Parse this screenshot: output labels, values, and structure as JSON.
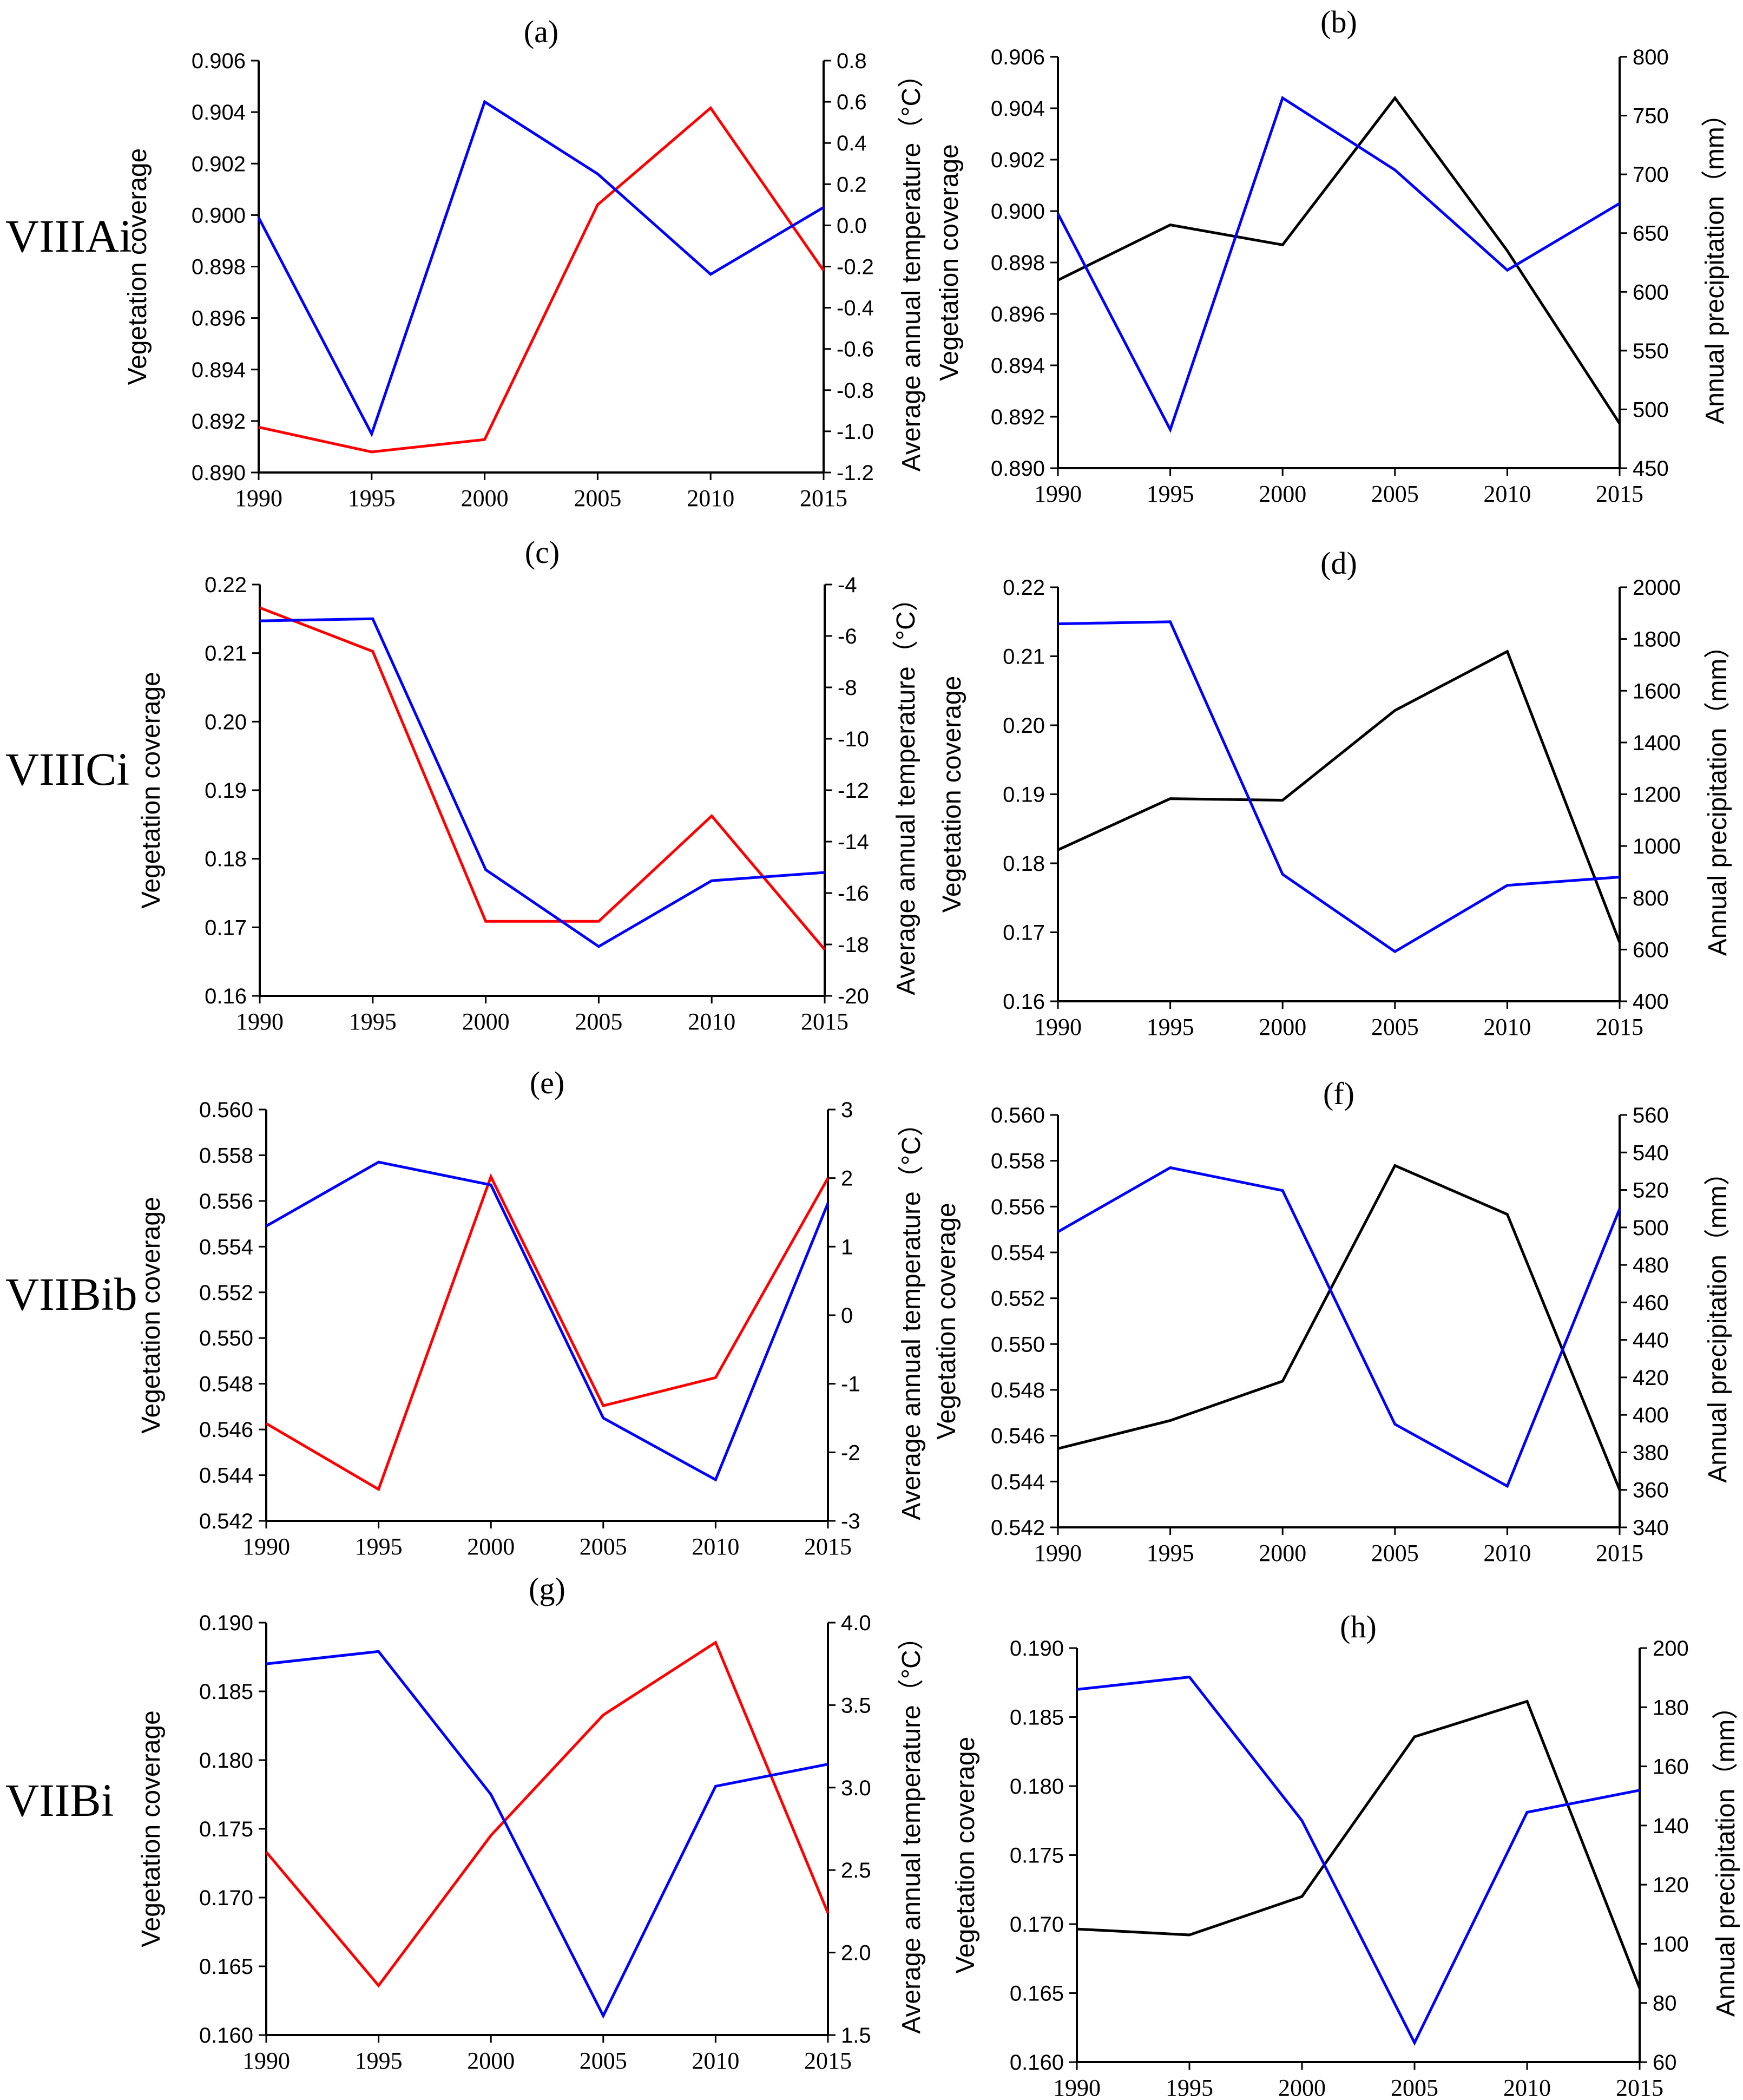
{
  "figure": {
    "rows": [
      "VIIIAi",
      "VIIICi",
      "VIIBib",
      "VIIBi"
    ],
    "colors": {
      "coverage": "#0000ff",
      "temperature": "#ff0000",
      "precipitation": "#000000",
      "axis": "#000000"
    }
  },
  "chart_data": [
    {
      "panel": "(a)",
      "region": "VIIIAi",
      "type": "line",
      "x": [
        1990,
        1995,
        2000,
        2005,
        2010,
        2015
      ],
      "xlim": [
        1990,
        2015
      ],
      "xticks": [
        "1990",
        "1995",
        "2000",
        "2005",
        "2010",
        "2015"
      ],
      "ylabel": "Vegetation coverage",
      "ylim": [
        0.89,
        0.906
      ],
      "yticks": [
        "0.890",
        "0.892",
        "0.894",
        "0.896",
        "0.898",
        "0.900",
        "0.902",
        "0.904",
        "0.906"
      ],
      "y2label": "Average annual temperature（°C）",
      "y2lim": [
        -1.2,
        0.8
      ],
      "y2ticks": [
        "-1.2",
        "-1.0",
        "-0.8",
        "-0.6",
        "-0.4",
        "-0.2",
        "0.0",
        "0.2",
        "0.4",
        "0.6",
        "0.8"
      ],
      "series": [
        {
          "name": "Vegetation coverage",
          "axis": "left",
          "color": "#0000ff",
          "values": [
            0.8999,
            0.8915,
            0.9044,
            0.9016,
            0.8977,
            0.9003
          ]
        },
        {
          "name": "Average annual temperature",
          "axis": "right",
          "color": "#ff0000",
          "values": [
            -0.98,
            -1.1,
            -1.04,
            0.1,
            0.57,
            -0.22
          ]
        }
      ]
    },
    {
      "panel": "(b)",
      "region": "VIIIAi",
      "type": "line",
      "x": [
        1990,
        1995,
        2000,
        2005,
        2010,
        2015
      ],
      "xlim": [
        1990,
        2015
      ],
      "xticks": [
        "1990",
        "1995",
        "2000",
        "2005",
        "2010",
        "2015"
      ],
      "ylabel": "Vegetation coverage",
      "ylim": [
        0.89,
        0.906
      ],
      "yticks": [
        "0.890",
        "0.892",
        "0.894",
        "0.896",
        "0.898",
        "0.900",
        "0.902",
        "0.904",
        "0.906"
      ],
      "y2label": "Annual precipitation（mm）",
      "y2lim": [
        450,
        800
      ],
      "y2ticks": [
        "450",
        "500",
        "550",
        "600",
        "650",
        "700",
        "750",
        "800"
      ],
      "series": [
        {
          "name": "Vegetation coverage",
          "axis": "left",
          "color": "#0000ff",
          "values": [
            0.8999,
            0.8915,
            0.9044,
            0.9016,
            0.8977,
            0.9003
          ]
        },
        {
          "name": "Annual precipitation",
          "axis": "right",
          "color": "#000000",
          "values": [
            610,
            657,
            640,
            765,
            635,
            488
          ]
        }
      ]
    },
    {
      "panel": "(c)",
      "region": "VIIICi",
      "type": "line",
      "x": [
        1990,
        1995,
        2000,
        2005,
        2010,
        2015
      ],
      "xlim": [
        1990,
        2015
      ],
      "xticks": [
        "1990",
        "1995",
        "2000",
        "2005",
        "2010",
        "2015"
      ],
      "ylabel": "Vegetation coverage",
      "ylim": [
        0.16,
        0.22
      ],
      "yticks": [
        "0.16",
        "0.17",
        "0.18",
        "0.19",
        "0.20",
        "0.21",
        "0.22"
      ],
      "y2label": "Average annual temperature（°C）",
      "y2lim": [
        -20,
        -4
      ],
      "y2ticks": [
        "-20",
        "-18",
        "-16",
        "-14",
        "-12",
        "-10",
        "-8",
        "-6",
        "-4"
      ],
      "series": [
        {
          "name": "Vegetation coverage",
          "axis": "left",
          "color": "#0000ff",
          "values": [
            0.2147,
            0.215,
            0.1784,
            0.1672,
            0.1768,
            0.178
          ]
        },
        {
          "name": "Average annual temperature",
          "axis": "right",
          "color": "#ff0000",
          "values": [
            -4.9,
            -6.6,
            -17.1,
            -17.1,
            -13.0,
            -18.2
          ]
        }
      ]
    },
    {
      "panel": "(d)",
      "region": "VIIICi",
      "type": "line",
      "x": [
        1990,
        1995,
        2000,
        2005,
        2010,
        2015
      ],
      "xlim": [
        1990,
        2015
      ],
      "xticks": [
        "1990",
        "1995",
        "2000",
        "2005",
        "2010",
        "2015"
      ],
      "ylabel": "Vegetation coverage",
      "ylim": [
        0.16,
        0.22
      ],
      "yticks": [
        "0.16",
        "0.17",
        "0.18",
        "0.19",
        "0.20",
        "0.21",
        "0.22"
      ],
      "y2label": "Annual precipitation（mm）",
      "y2lim": [
        400,
        2000
      ],
      "y2ticks": [
        "400",
        "600",
        "800",
        "1000",
        "1200",
        "1400",
        "1600",
        "1800",
        "2000"
      ],
      "series": [
        {
          "name": "Vegetation coverage",
          "axis": "left",
          "color": "#0000ff",
          "values": [
            0.2147,
            0.215,
            0.1784,
            0.1672,
            0.1768,
            0.178
          ]
        },
        {
          "name": "Annual precipitation",
          "axis": "right",
          "color": "#000000",
          "values": [
            985,
            1183,
            1177,
            1524,
            1752,
            628
          ]
        }
      ]
    },
    {
      "panel": "(e)",
      "region": "VIIBib",
      "type": "line",
      "x": [
        1990,
        1995,
        2000,
        2005,
        2010,
        2015
      ],
      "xlim": [
        1990,
        2015
      ],
      "xticks": [
        "1990",
        "1995",
        "2000",
        "2005",
        "2010",
        "2015"
      ],
      "ylabel": "Vegetation coverage",
      "ylim": [
        0.542,
        0.56
      ],
      "yticks": [
        "0.542",
        "0.544",
        "0.546",
        "0.548",
        "0.550",
        "0.552",
        "0.554",
        "0.556",
        "0.558",
        "0.560"
      ],
      "y2label": "Average annual temperature（°C）",
      "y2lim": [
        -3,
        3
      ],
      "y2ticks": [
        "-3",
        "-2",
        "-1",
        "0",
        "1",
        "2",
        "3"
      ],
      "series": [
        {
          "name": "Vegetation coverage",
          "axis": "left",
          "color": "#0000ff",
          "values": [
            0.5549,
            0.5577,
            0.5567,
            0.5465,
            0.5438,
            0.5559
          ]
        },
        {
          "name": "Average annual temperature",
          "axis": "right",
          "color": "#ff0000",
          "values": [
            -1.58,
            -2.54,
            2.02,
            -1.32,
            -0.91,
            2.0
          ]
        }
      ]
    },
    {
      "panel": "(f)",
      "region": "VIIBib",
      "type": "line",
      "x": [
        1990,
        1995,
        2000,
        2005,
        2010,
        2015
      ],
      "xlim": [
        1990,
        2015
      ],
      "xticks": [
        "1990",
        "1995",
        "2000",
        "2005",
        "2010",
        "2015"
      ],
      "ylabel": "Vegetation coverage",
      "ylim": [
        0.542,
        0.56
      ],
      "yticks": [
        "0.542",
        "0.544",
        "0.546",
        "0.548",
        "0.550",
        "0.552",
        "0.554",
        "0.556",
        "0.558",
        "0.560"
      ],
      "y2label": "Annual precipitation（mm）",
      "y2lim": [
        340,
        560
      ],
      "y2ticks": [
        "340",
        "360",
        "380",
        "400",
        "420",
        "440",
        "460",
        "480",
        "500",
        "520",
        "540",
        "560"
      ],
      "series": [
        {
          "name": "Vegetation coverage",
          "axis": "left",
          "color": "#0000ff",
          "values": [
            0.5549,
            0.5577,
            0.5567,
            0.5465,
            0.5438,
            0.5559
          ]
        },
        {
          "name": "Annual precipitation",
          "axis": "right",
          "color": "#000000",
          "values": [
            382,
            397,
            418,
            533,
            507,
            360
          ]
        }
      ]
    },
    {
      "panel": "(g)",
      "region": "VIIBi",
      "type": "line",
      "x": [
        1990,
        1995,
        2000,
        2005,
        2010,
        2015
      ],
      "xlim": [
        1990,
        2015
      ],
      "xticks": [
        "1990",
        "1995",
        "2000",
        "2005",
        "2010",
        "2015"
      ],
      "ylabel": "Vegetation coverage",
      "ylim": [
        0.16,
        0.19
      ],
      "yticks": [
        "0.160",
        "0.165",
        "0.170",
        "0.175",
        "0.180",
        "0.185",
        "0.190"
      ],
      "y2label": "Average annual temperature（°C）",
      "y2lim": [
        1.5,
        4.0
      ],
      "y2ticks": [
        "1.5",
        "2.0",
        "2.5",
        "3.0",
        "3.5",
        "4.0"
      ],
      "series": [
        {
          "name": "Vegetation coverage",
          "axis": "left",
          "color": "#0000ff",
          "values": [
            0.187,
            0.1879,
            0.1775,
            0.1614,
            0.1781,
            0.1797
          ]
        },
        {
          "name": "Average annual temperature",
          "axis": "right",
          "color": "#ff0000",
          "values": [
            2.61,
            1.8,
            2.71,
            3.44,
            3.88,
            2.24
          ]
        }
      ]
    },
    {
      "panel": "(h)",
      "region": "VIIBi",
      "type": "line",
      "x": [
        1990,
        1995,
        2000,
        2005,
        2010,
        2015
      ],
      "xlim": [
        1990,
        2015
      ],
      "xticks": [
        "1990",
        "1995",
        "2000",
        "2005",
        "2010",
        "2015"
      ],
      "ylabel": "Vegetation coverage",
      "ylim": [
        0.16,
        0.19
      ],
      "yticks": [
        "0.160",
        "0.165",
        "0.170",
        "0.175",
        "0.180",
        "0.185",
        "0.190"
      ],
      "y2label": "Annual precipitation（mm）",
      "y2lim": [
        60,
        200
      ],
      "y2ticks": [
        "60",
        "80",
        "100",
        "120",
        "140",
        "160",
        "180",
        "200"
      ],
      "series": [
        {
          "name": "Vegetation coverage",
          "axis": "left",
          "color": "#0000ff",
          "values": [
            0.187,
            0.1879,
            0.1775,
            0.1614,
            0.1781,
            0.1797
          ]
        },
        {
          "name": "Annual precipitation",
          "axis": "right",
          "color": "#000000",
          "values": [
            105,
            103,
            116,
            170,
            182,
            85
          ]
        }
      ]
    }
  ]
}
